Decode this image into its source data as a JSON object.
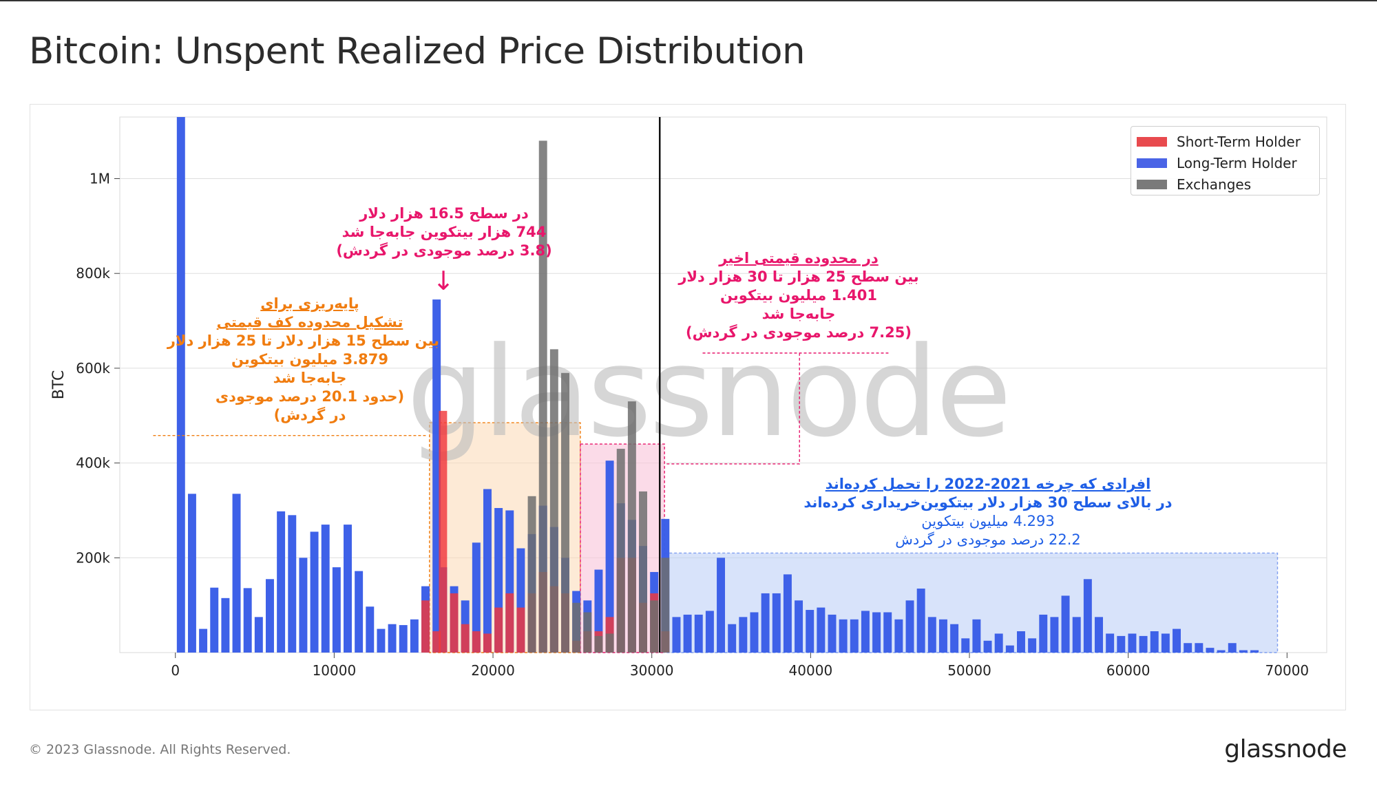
{
  "header": {
    "title": "Bitcoin: Unspent Realized Price Distribution"
  },
  "footer": {
    "copyright": "© 2023 Glassnode. All Rights Reserved.",
    "brand": "glassnode"
  },
  "watermark": "glassnode",
  "colors": {
    "sth": "#e8383c",
    "lth": "#3d5ee6",
    "exchanges": "#707070",
    "orange": "#f07c0f",
    "pink": "#e8166b",
    "blue": "#1e5ee6"
  },
  "legend": [
    {
      "name": "Short-Term Holder",
      "color": "#e84a4e"
    },
    {
      "name": "Long-Term Holder",
      "color": "#4a64e6"
    },
    {
      "name": "Exchanges",
      "color": "#7a7a7a"
    }
  ],
  "annotations": {
    "a1": [
      "در سطح 16.5 هزار دلار",
      "744 هزار بیتکوین جابه‌جا شد",
      "(3.8 درصد موجودی در گردش)"
    ],
    "arrow": "↓",
    "a2": [
      "پایه‌ریزی برای",
      "تشکیل محدوده کف قیمتی",
      "بین سطح 15 هزار دلار تا 25 هزار دلار",
      "3.879 میلیون بیتکوین",
      "جابه‌جا شد",
      "(حدود 20.1 درصد موجودی",
      "در گردش)"
    ],
    "a3": [
      "در محدوده قیمتی اخیر",
      "بین سطح 25 هزار تا 30 هزار دلار",
      "1.401 میلیون بیتکوین",
      "جابه‌جا شد",
      "(7.25 درصد موجودی در گردش)"
    ],
    "a4": [
      "افرادی که چرخه 2021-2022 را تحمل کرده‌اند",
      "در بالای سطح 30 هزار دلار بیتکوین‌خریداری کرده‌اند",
      "4.293 میلیون بیتکوین",
      "22.2 درصد موجودی در گردش"
    ]
  },
  "chart_data": {
    "type": "bar",
    "title": "Bitcoin: Unspent Realized Price Distribution",
    "xlabel": "",
    "ylabel": "BTC",
    "xlim": [
      -3500,
      72500
    ],
    "ylim": [
      0,
      1130000
    ],
    "xticks": [
      0,
      10000,
      20000,
      30000,
      40000,
      50000,
      60000,
      70000
    ],
    "xtick_labels": [
      "0",
      "10000",
      "20000",
      "30000",
      "40000",
      "50000",
      "60000",
      "70000"
    ],
    "yticks": [
      200000,
      400000,
      600000,
      800000,
      1000000
    ],
    "ytick_labels": [
      "200k",
      "400k",
      "600k",
      "800k",
      "1M"
    ],
    "grid": true,
    "legend_position": "top-right",
    "bin_width": 700,
    "current_price_line": 30500,
    "highlight_regions": [
      {
        "name": "floor-range",
        "x": [
          16000,
          25500
        ],
        "y": [
          0,
          485000
        ],
        "color": "orange"
      },
      {
        "name": "recent-range",
        "x": [
          25500,
          30800
        ],
        "y": [
          0,
          440000
        ],
        "color": "pink"
      },
      {
        "name": "above-30k",
        "x": [
          30800,
          69400
        ],
        "y": [
          0,
          210000
        ],
        "color": "blue"
      }
    ],
    "series": [
      {
        "name": "Long-Term Holder",
        "type": "bar",
        "x": [
          350,
          1050,
          1750,
          2450,
          3150,
          3850,
          4550,
          5250,
          5950,
          6650,
          7350,
          8050,
          8750,
          9450,
          10150,
          10850,
          11550,
          12250,
          12950,
          13650,
          14350,
          15050,
          15750,
          16450,
          16850,
          17550,
          18250,
          18950,
          19650,
          20350,
          21050,
          21750,
          22450,
          23150,
          23850,
          24550,
          25250,
          25950,
          26650,
          27350,
          28050,
          28750,
          29450,
          30150,
          30850,
          31550,
          32250,
          32950,
          33650,
          34350,
          35050,
          35750,
          36450,
          37150,
          37850,
          38550,
          39250,
          39950,
          40650,
          41350,
          42050,
          42750,
          43450,
          44150,
          44850,
          45550,
          46250,
          46950,
          47650,
          48350,
          49050,
          49750,
          50450,
          51150,
          51850,
          52550,
          53250,
          53950,
          54650,
          55350,
          56050,
          56750,
          57450,
          58150,
          58850,
          59550,
          60250,
          60950,
          61650,
          62350,
          63050,
          63750,
          64450,
          65150,
          65850,
          66550,
          67250,
          67950
        ],
        "values": [
          1130000,
          335000,
          50000,
          137000,
          115000,
          335000,
          136000,
          75000,
          155000,
          298000,
          290000,
          200000,
          255000,
          270000,
          180000,
          270000,
          172000,
          97000,
          50000,
          60000,
          58000,
          70000,
          140000,
          745000,
          180000,
          140000,
          110000,
          232000,
          345000,
          305000,
          300000,
          220000,
          250000,
          310000,
          265000,
          200000,
          130000,
          110000,
          175000,
          405000,
          315000,
          280000,
          225000,
          170000,
          282000,
          75000,
          80000,
          80000,
          88000,
          200000,
          60000,
          75000,
          85000,
          125000,
          125000,
          165000,
          110000,
          90000,
          95000,
          80000,
          70000,
          70000,
          88000,
          85000,
          85000,
          70000,
          110000,
          135000,
          75000,
          70000,
          60000,
          30000,
          70000,
          25000,
          40000,
          15000,
          45000,
          30000,
          80000,
          75000,
          120000,
          75000,
          155000,
          75000,
          40000,
          35000,
          40000,
          35000,
          45000,
          40000,
          50000,
          20000,
          20000,
          10000,
          5000,
          20000,
          5000,
          5000
        ]
      },
      {
        "name": "Short-Term Holder",
        "type": "bar",
        "x": [
          15750,
          16450,
          16850,
          17550,
          18250,
          18950,
          19650,
          20350,
          21050,
          21750,
          22450,
          23150,
          23850,
          24550,
          25250,
          25950,
          26650,
          27350,
          28050,
          28750,
          29450,
          30150,
          30850
        ],
        "values": [
          110000,
          45000,
          510000,
          125000,
          60000,
          45000,
          40000,
          95000,
          125000,
          95000,
          125000,
          170000,
          140000,
          125000,
          25000,
          45000,
          45000,
          75000,
          200000,
          200000,
          105000,
          125000,
          45000
        ]
      },
      {
        "name": "Exchanges",
        "type": "bar",
        "x": [
          22450,
          23150,
          23850,
          24550,
          25250,
          25950,
          26650,
          27350,
          28050,
          28750,
          29450,
          30150,
          30850
        ],
        "values": [
          330000,
          1080000,
          640000,
          590000,
          105000,
          85000,
          35000,
          40000,
          430000,
          530000,
          340000,
          110000,
          200000
        ]
      }
    ]
  }
}
